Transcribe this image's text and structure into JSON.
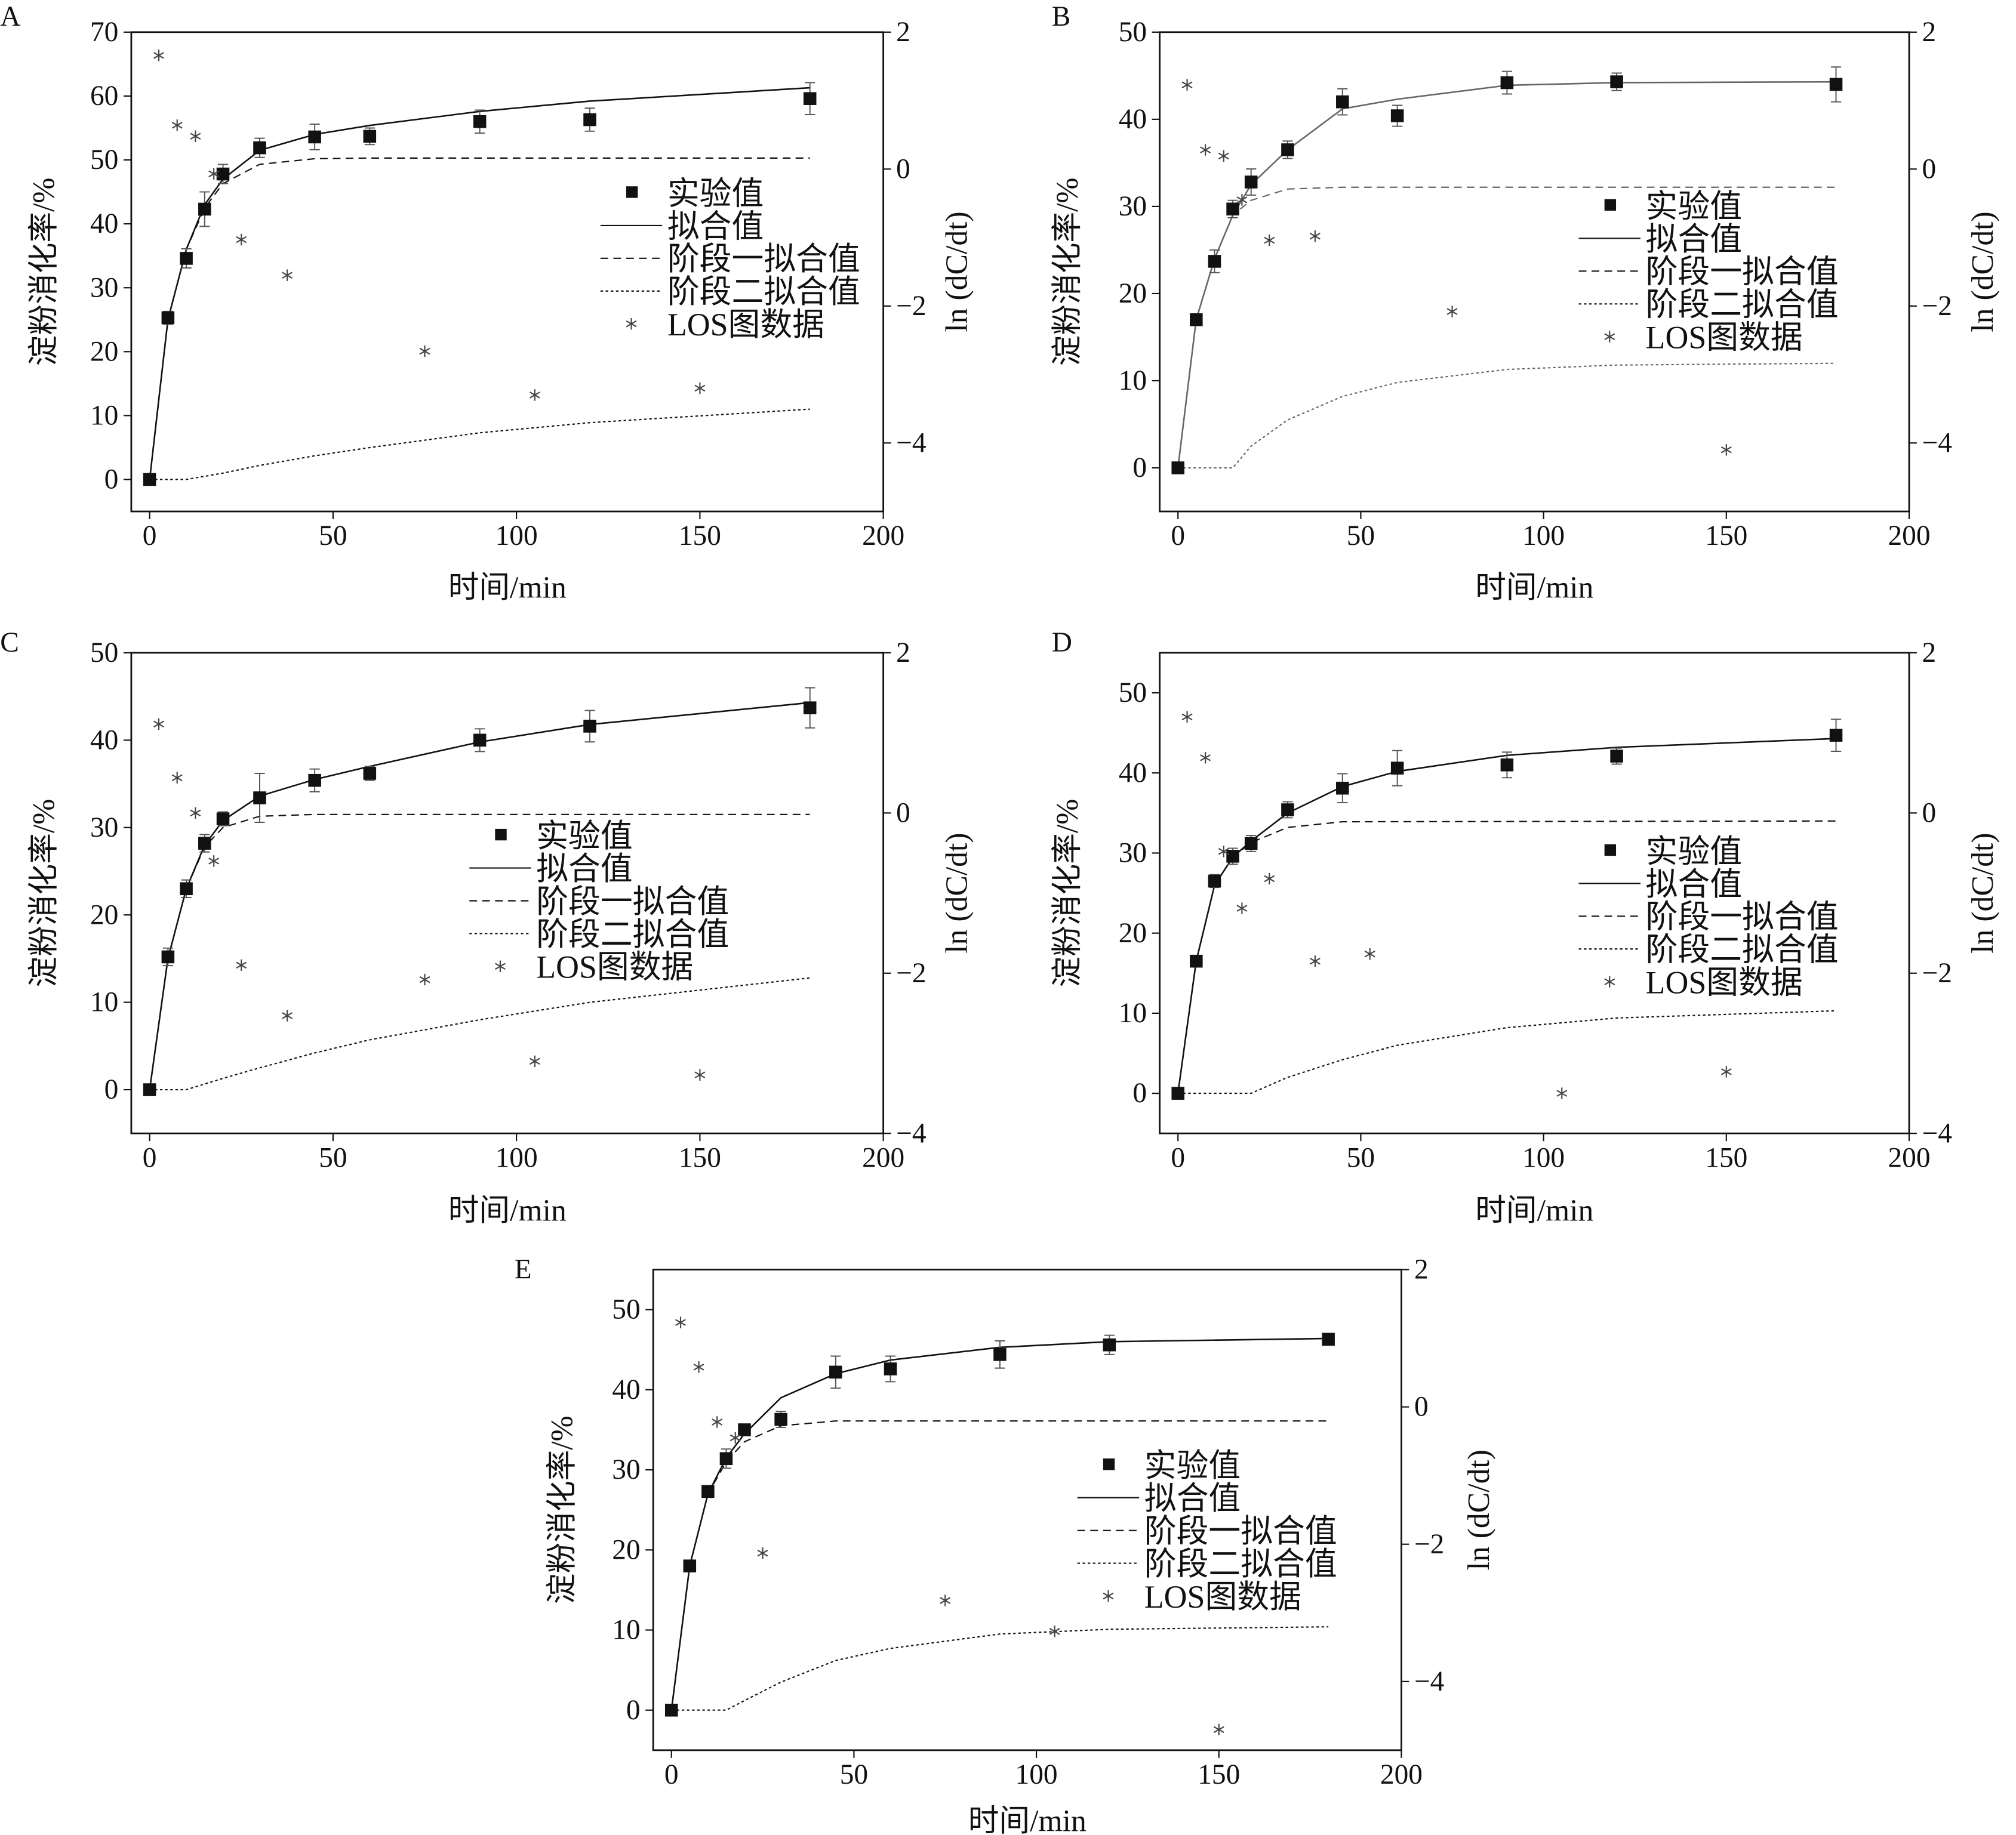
{
  "chart_data": [
    {
      "panel": "A",
      "type": "line",
      "xlabel": "时间/min",
      "ylabel": "淀粉消化率/%",
      "y2label": "ln (dC/dt)",
      "xlim": [
        -5,
        200
      ],
      "ylim": [
        -5,
        70
      ],
      "y2lim": [
        -5,
        2
      ],
      "xticks": [
        0,
        50,
        100,
        150,
        200
      ],
      "yticks": [
        0,
        10,
        20,
        30,
        40,
        50,
        60,
        70
      ],
      "y2ticks": [
        -4,
        -2,
        0,
        2
      ],
      "legend": [
        "实验值",
        "拟合值",
        "阶段一拟合值",
        "阶段二拟合值",
        "LOS图数据"
      ],
      "experimental": {
        "x": [
          0,
          5,
          10,
          15,
          20,
          30,
          45,
          60,
          90,
          120,
          180
        ],
        "y": [
          0,
          25.3,
          34.6,
          42.3,
          47.8,
          51.9,
          53.6,
          53.7,
          56,
          56.3,
          59.6
        ],
        "err": [
          0,
          1,
          1.5,
          2.7,
          1.5,
          1.5,
          2,
          1.3,
          1.8,
          1.8,
          2.5
        ]
      },
      "fit": {
        "x": [
          0,
          5,
          10,
          15,
          20,
          30,
          45,
          60,
          90,
          120,
          180
        ],
        "y": [
          0,
          25,
          36,
          43,
          47,
          51.5,
          54,
          55.4,
          57.6,
          59.2,
          61.3
        ]
      },
      "stage1": {
        "x": [
          0,
          5,
          10,
          15,
          20,
          30,
          45,
          60,
          180
        ],
        "y": [
          0,
          25,
          36,
          42.5,
          46.3,
          49.3,
          50.2,
          50.3,
          50.3
        ]
      },
      "stage2": {
        "x": [
          0,
          10,
          20,
          30,
          45,
          60,
          90,
          120,
          180
        ],
        "y": [
          0,
          0,
          1,
          2.2,
          3.7,
          5,
          7.3,
          8.9,
          11
        ]
      },
      "los": {
        "x": [
          2.5,
          7.5,
          12.5,
          17.5,
          25,
          37.5,
          75,
          105,
          150
        ],
        "y": [
          1.66,
          0.64,
          0.48,
          -0.07,
          -1.03,
          -1.55,
          -2.66,
          -3.3,
          -3.2
        ]
      }
    },
    {
      "panel": "B",
      "type": "line",
      "xlabel": "时间/min",
      "ylabel": "淀粉消化率/%",
      "y2label": "ln (dC/dt)",
      "xlim": [
        -5,
        200
      ],
      "ylim": [
        -5,
        50
      ],
      "y2lim": [
        -5,
        2
      ],
      "xticks": [
        0,
        50,
        100,
        150,
        200
      ],
      "yticks": [
        0,
        10,
        20,
        30,
        40,
        50
      ],
      "y2ticks": [
        -4,
        -2,
        0,
        2
      ],
      "legend": [
        "实验值",
        "拟合值",
        "阶段一拟合值",
        "阶段二拟合值",
        "LOS图数据"
      ],
      "experimental": {
        "x": [
          0,
          5,
          10,
          15,
          20,
          30,
          45,
          60,
          90,
          120,
          180
        ],
        "y": [
          0,
          17,
          23.7,
          29.7,
          32.8,
          36.5,
          42,
          40.4,
          44.2,
          44.3,
          44
        ],
        "err": [
          0,
          0.5,
          1.3,
          1,
          1.5,
          1,
          1.5,
          1.2,
          1.3,
          1,
          2
        ]
      },
      "fit": {
        "x": [
          0,
          5,
          10,
          15,
          20,
          30,
          45,
          60,
          90,
          120,
          180
        ],
        "y": [
          0,
          17,
          24,
          29,
          32.5,
          36.5,
          41.2,
          42.3,
          43.9,
          44.2,
          44.3
        ]
      },
      "stage1": {
        "x": [
          0,
          5,
          10,
          15,
          20,
          30,
          45,
          180
        ],
        "y": [
          0,
          17,
          24,
          29,
          30.7,
          32,
          32.2,
          32.2
        ]
      },
      "stage2": {
        "x": [
          0,
          15,
          20,
          30,
          45,
          60,
          90,
          120,
          180
        ],
        "y": [
          0,
          0,
          2.5,
          5.5,
          8.2,
          9.8,
          11.3,
          11.8,
          12
        ]
      },
      "los": {
        "x": [
          2.5,
          7.5,
          12.5,
          17.5,
          25,
          37.5,
          75,
          150
        ],
        "y": [
          1.23,
          0.28,
          0.19,
          -0.45,
          -1.04,
          -0.98,
          -2.08,
          -4.1
        ]
      }
    },
    {
      "panel": "C",
      "type": "line",
      "xlabel": "时间/min",
      "ylabel": "淀粉消化率/%",
      "y2label": "ln (dC/dt)",
      "xlim": [
        -5,
        200
      ],
      "ylim": [
        -5,
        50
      ],
      "y2lim": [
        -4,
        2
      ],
      "xticks": [
        0,
        50,
        100,
        150,
        200
      ],
      "yticks": [
        0,
        10,
        20,
        30,
        40,
        50
      ],
      "y2ticks": [
        -4,
        -2,
        0,
        2
      ],
      "legend": [
        "实验值",
        "拟合值",
        "阶段一拟合值",
        "阶段二拟合值",
        "LOS图数据"
      ],
      "experimental": {
        "x": [
          0,
          5,
          10,
          15,
          20,
          30,
          45,
          60,
          90,
          120,
          180
        ],
        "y": [
          0,
          15.2,
          23,
          28.2,
          31,
          33.4,
          35.4,
          36.2,
          40,
          41.6,
          43.7
        ],
        "err": [
          0,
          1,
          1,
          1,
          0.8,
          2.8,
          1.3,
          0.8,
          1.3,
          1.8,
          2.3
        ]
      },
      "fit": {
        "x": [
          0,
          5,
          10,
          15,
          20,
          30,
          45,
          60,
          90,
          120,
          180
        ],
        "y": [
          0,
          15,
          23,
          28,
          30.8,
          33.6,
          35.5,
          37,
          39.8,
          41.8,
          44.3
        ]
      },
      "stage1": {
        "x": [
          0,
          5,
          10,
          15,
          20,
          30,
          45,
          180
        ],
        "y": [
          0,
          15,
          23,
          27.8,
          30,
          31.3,
          31.5,
          31.5
        ]
      },
      "stage2": {
        "x": [
          0,
          10,
          20,
          30,
          45,
          60,
          90,
          120,
          180
        ],
        "y": [
          0,
          0,
          1.3,
          2.5,
          4.2,
          5.7,
          8,
          10,
          12.8
        ]
      },
      "los": {
        "x": [
          2.5,
          7.5,
          12.5,
          17.5,
          25,
          37.5,
          75,
          105,
          150
        ],
        "y": [
          1.11,
          0.44,
          0,
          -0.6,
          -1.9,
          -2.53,
          -2.08,
          -3.1,
          -3.27
        ]
      }
    },
    {
      "panel": "D",
      "type": "line",
      "xlabel": "时间/min",
      "ylabel": "淀粉消化率/%",
      "y2label": "ln (dC/dt)",
      "xlim": [
        -5,
        200
      ],
      "ylim": [
        -5,
        55
      ],
      "y2lim": [
        -4,
        2
      ],
      "xticks": [
        0,
        50,
        100,
        150,
        200
      ],
      "yticks": [
        0,
        10,
        20,
        30,
        40,
        50
      ],
      "y2ticks": [
        -4,
        -2,
        0,
        2
      ],
      "legend": [
        "实验值",
        "拟合值",
        "阶段一拟合值",
        "阶段二拟合值",
        "LOS图数据"
      ],
      "experimental": {
        "x": [
          0,
          5,
          10,
          15,
          20,
          30,
          45,
          60,
          90,
          120,
          180
        ],
        "y": [
          0,
          16.5,
          26.5,
          29.6,
          31.2,
          35.4,
          38.1,
          40.6,
          41,
          42.1,
          44.7
        ],
        "err": [
          0,
          0.5,
          0.8,
          1,
          1,
          1,
          1.8,
          2.2,
          1.6,
          1,
          2
        ]
      },
      "fit": {
        "x": [
          0,
          5,
          10,
          15,
          20,
          30,
          45,
          60,
          90,
          120,
          180
        ],
        "y": [
          0,
          16.5,
          26,
          29.5,
          31.5,
          35,
          38.3,
          40.2,
          42.2,
          43.2,
          44.3
        ]
      },
      "stage1": {
        "x": [
          0,
          5,
          10,
          15,
          20,
          30,
          45,
          180
        ],
        "y": [
          0,
          16.5,
          26,
          29.5,
          31.3,
          33.2,
          33.9,
          34
        ]
      },
      "stage2": {
        "x": [
          0,
          20,
          30,
          45,
          60,
          90,
          120,
          180
        ],
        "y": [
          0,
          0,
          2,
          4.2,
          6,
          8.2,
          9.4,
          10.3
        ]
      },
      "los": {
        "x": [
          2.5,
          7.5,
          12.5,
          17.5,
          25,
          37.5,
          52.5,
          105,
          150
        ],
        "y": [
          1.2,
          0.69,
          -0.48,
          -1.19,
          -0.82,
          -1.85,
          -1.76,
          -3.5,
          -3.23
        ]
      }
    },
    {
      "panel": "E",
      "type": "line",
      "xlabel": "时间/min",
      "ylabel": "淀粉消化率/%",
      "y2label": "ln (dC/dt)",
      "xlim": [
        -5,
        200
      ],
      "ylim": [
        -5,
        55
      ],
      "y2lim": [
        -5,
        2
      ],
      "xticks": [
        0,
        50,
        100,
        150,
        200
      ],
      "yticks": [
        0,
        10,
        20,
        30,
        40,
        50
      ],
      "y2ticks": [
        -4,
        -2,
        0,
        2
      ],
      "legend": [
        "实验值",
        "拟合值",
        "阶段一拟合值",
        "阶段二拟合值",
        "LOS图数据"
      ],
      "experimental": {
        "x": [
          0,
          5,
          10,
          15,
          20,
          30,
          45,
          60,
          90,
          120,
          180
        ],
        "y": [
          0,
          18,
          27.3,
          31.4,
          35,
          36.3,
          42.2,
          42.6,
          44.4,
          45.6,
          46.3
        ],
        "err": [
          0,
          0.5,
          0.6,
          1.2,
          0.6,
          1,
          2,
          1.6,
          1.7,
          1.2,
          0.6
        ]
      },
      "fit": {
        "x": [
          0,
          5,
          10,
          15,
          20,
          30,
          45,
          60,
          90,
          120,
          180
        ],
        "y": [
          0,
          18,
          27,
          31.5,
          34.5,
          39,
          42,
          43.7,
          45.3,
          46,
          46.4
        ]
      },
      "stage1": {
        "x": [
          0,
          5,
          10,
          15,
          20,
          30,
          45,
          180
        ],
        "y": [
          0,
          18,
          27,
          31,
          33.5,
          35.5,
          36.1,
          36.1
        ]
      },
      "stage2": {
        "x": [
          0,
          15,
          20,
          30,
          45,
          60,
          90,
          120,
          180
        ],
        "y": [
          0,
          0,
          1.2,
          3.5,
          6.2,
          7.7,
          9.5,
          10.1,
          10.4
        ]
      },
      "los": {
        "x": [
          2.5,
          7.5,
          12.5,
          17.5,
          25,
          75,
          105,
          150
        ],
        "y": [
          1.23,
          0.58,
          -0.22,
          -0.45,
          -2.13,
          -2.82,
          -3.27,
          -4.7
        ]
      }
    }
  ]
}
